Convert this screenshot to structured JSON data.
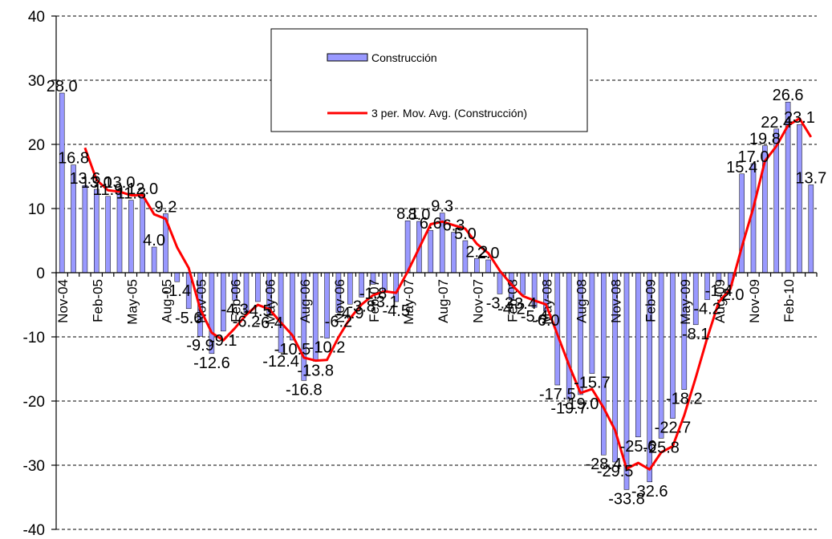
{
  "chart_data": {
    "type": "bar",
    "ylim": [
      -40,
      40
    ],
    "yticks": [
      40,
      30,
      20,
      10,
      0,
      -10,
      -20,
      -30,
      -40
    ],
    "categories": [
      "Nov-04",
      "Dec-04",
      "Jan-05",
      "Feb-05",
      "Mar-05",
      "Apr-05",
      "May-05",
      "Jun-05",
      "Jul-05",
      "Aug-05",
      "Sep-05",
      "Oct-05",
      "Nov-05",
      "Dec-05",
      "Jan-06",
      "Feb-06",
      "Mar-06",
      "Apr-06",
      "May-06",
      "Jun-06",
      "Jul-06",
      "Aug-06",
      "Sep-06",
      "Oct-06",
      "Nov-06",
      "Dec-06",
      "Jan-07",
      "Feb-07",
      "Mar-07",
      "Apr-07",
      "May-07",
      "Jun-07",
      "Jul-07",
      "Aug-07",
      "Sep-07",
      "Oct-07",
      "Nov-07",
      "Dec-07",
      "Jan-08",
      "Feb-08",
      "Mar-08",
      "Apr-08",
      "May-08",
      "Jun-08",
      "Jul-08",
      "Aug-08",
      "Sep-08",
      "Oct-08",
      "Nov-08",
      "Dec-08",
      "Jan-09",
      "Feb-09",
      "Mar-09",
      "Apr-09",
      "May-09",
      "Jun-09",
      "Jul-09",
      "Aug-09",
      "Sep-09",
      "Oct-09",
      "Nov-09",
      "Dec-09",
      "Jan-10",
      "Feb-10",
      "Mar-10",
      "Apr-10"
    ],
    "xtick_labels": [
      "Nov-04",
      "Feb-05",
      "May-05",
      "Aug-05",
      "Nov-05",
      "Feb-06",
      "May-06",
      "Aug-06",
      "Nov-06",
      "Feb-07",
      "May-07",
      "Aug-07",
      "Nov-07",
      "Feb-08",
      "May-08",
      "Aug-08",
      "Nov-08",
      "Feb-09",
      "May-09",
      "Aug-09",
      "Nov-09",
      "Feb-10"
    ],
    "series": [
      {
        "name": "Construcción",
        "type": "bar",
        "color": "#9999ff",
        "values": [
          28.0,
          16.8,
          13.6,
          13.0,
          11.9,
          13.0,
          11.3,
          12.0,
          4.0,
          9.2,
          -1.4,
          -5.6,
          -9.9,
          -12.6,
          -9.1,
          -4.3,
          -6.2,
          -4.5,
          -6.4,
          -12.4,
          -10.5,
          -16.8,
          -13.8,
          -10.2,
          -6.2,
          -4.9,
          -3.8,
          -1.8,
          -3.1,
          -4.5,
          8.1,
          8.0,
          6.6,
          9.3,
          6.3,
          5.0,
          2.2,
          2.0,
          -3.3,
          -4.2,
          -3.4,
          -5.4,
          -6.0,
          -17.5,
          -19.7,
          -19.0,
          -15.7,
          -28.4,
          -29.5,
          -33.8,
          -25.6,
          -32.6,
          -25.8,
          -22.7,
          -18.2,
          -8.1,
          -4.2,
          -1.4,
          -2.0,
          15.4,
          17.0,
          19.8,
          22.4,
          26.6,
          23.1,
          13.7
        ],
        "labels": [
          "28.0",
          "16.8",
          "13.6",
          "13.0",
          "11.9",
          "13.0",
          "11.3",
          "12.0",
          "4.0",
          "9.2",
          "-1.4",
          "-5.6",
          "-9.9",
          "-12.6",
          "-9.1",
          "-4.3",
          "-6.2",
          "-4.5",
          "-6.4",
          "-12.4",
          "-10.5",
          "-16.8",
          "-13.8",
          "-10.2",
          "-6.2",
          "-4.9",
          "-3.8",
          "-1.8",
          "-3.1",
          "-4.5",
          "8.1",
          "8.0",
          "6.6",
          "9.3",
          "6.3",
          "5.0",
          "2.2",
          "2.0",
          "-3.3",
          "-4.2",
          "-3.4",
          "-5.4",
          "-6.0",
          "-17.5",
          "-19.7",
          "-19.0",
          "-15.7",
          "-28.4",
          "-29.5",
          "-33.8",
          "-25.6",
          "-32.6",
          "-25.8",
          "-22.7",
          "-18.2",
          "-8.1",
          "-4.2",
          "-1.4",
          "-2.0",
          "15.4",
          "17.0",
          "19.8",
          "22.4",
          "26.6",
          "23.1",
          "13.7"
        ]
      },
      {
        "name": "3 per. Mov. Avg. (Construcción)",
        "type": "line",
        "color": "#ff0000",
        "start_index": 2
      }
    ],
    "legend": {
      "position": "top-center",
      "entries": [
        "Construcción",
        "3 per. Mov. Avg. (Construcción)"
      ]
    },
    "grid": true
  }
}
